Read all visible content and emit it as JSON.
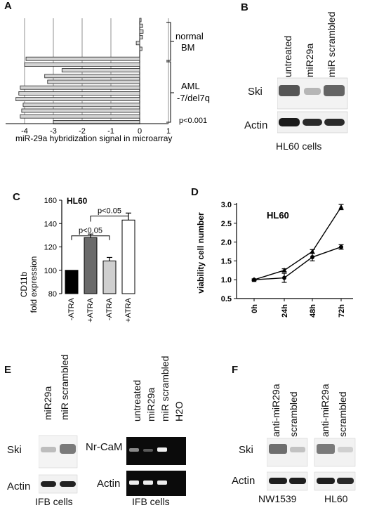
{
  "panels": {
    "A": {
      "letter": "A",
      "chart_data": {
        "type": "bar",
        "orientation": "horizontal",
        "xlabel": "miR-29a hybridization signal in microarray",
        "xlim": [
          -4.3,
          1
        ],
        "xticks": [
          "-4",
          "-3",
          "-2",
          "-1",
          "0",
          "1"
        ],
        "groups": [
          {
            "label": "normal BM",
            "values": [
              0.05,
              0.1,
              0.12,
              0.1,
              -0.12,
              0.08
            ]
          },
          {
            "label": "AML -7/del7q",
            "values": [
              -3.95,
              -4.0,
              -2.7,
              -3.3,
              -3.2,
              -4.15,
              -4.2,
              -4.3,
              -4.05,
              -4.1,
              -4.15,
              -3.0
            ]
          }
        ],
        "group_label_lines": [
          [
            "normal",
            "BM"
          ],
          [
            "AML",
            "-7/del7q"
          ]
        ],
        "annotation": "p<0.001"
      }
    },
    "B": {
      "letter": "B",
      "lanes": [
        "untreated",
        "miR29a",
        "miR scrambled"
      ],
      "rows": [
        "Ski",
        "Actin"
      ],
      "caption": "HL60 cells"
    },
    "C": {
      "letter": "C",
      "chart_data": {
        "type": "bar",
        "title": "HL60",
        "ylabel_lines": [
          "CD11b",
          "fold expression"
        ],
        "ylim": [
          80,
          160
        ],
        "yticks": [
          "80",
          "100",
          "120",
          "140",
          "160"
        ],
        "categories": [
          "-ATRA",
          "+ATRA",
          "-ATRA",
          "+ATRA"
        ],
        "values": [
          100,
          128,
          108,
          143
        ],
        "errors": [
          0,
          3,
          3,
          6
        ],
        "fills": [
          "#000000",
          "#6a6a6a",
          "#cfcfcf",
          "#ffffff"
        ],
        "annotations": [
          "p<0.05",
          "p<0.05"
        ]
      }
    },
    "D": {
      "letter": "D",
      "chart_data": {
        "type": "line",
        "title": "HL60",
        "ylabel": "viability cell number",
        "ylim": [
          0.5,
          3.0
        ],
        "yticks": [
          "0.5",
          "1.0",
          "1.5",
          "2.0",
          "2.5",
          "3.0"
        ],
        "categories": [
          "0h",
          "24h",
          "48h",
          "72h"
        ],
        "series": [
          {
            "values": [
              1.0,
              1.25,
              1.75,
              2.93
            ],
            "errors": [
              0.02,
              0.04,
              0.05,
              0.07
            ],
            "marker": "triangle"
          },
          {
            "values": [
              1.0,
              1.05,
              1.6,
              1.87
            ],
            "errors": [
              0.02,
              0.12,
              0.1,
              0.06
            ],
            "marker": "circle"
          }
        ]
      }
    },
    "E": {
      "letter": "E",
      "left": {
        "lanes": [
          "miR29a",
          "miR scrambled"
        ],
        "rows": [
          "Ski",
          "Actin"
        ],
        "caption": "IFB cells"
      },
      "right": {
        "lanes": [
          "untreated",
          "miR29a",
          "miR scrambled",
          "H2O"
        ],
        "rows": [
          "Nr-CaM",
          "Actin"
        ],
        "caption": "IFB cells"
      }
    },
    "F": {
      "letter": "F",
      "lanes": [
        "anti-miR29a",
        "scrambled",
        "anti-miR29a",
        "scrambled"
      ],
      "rows": [
        "Ski",
        "Actin"
      ],
      "captions": [
        "NW1539",
        "HL60"
      ]
    }
  }
}
